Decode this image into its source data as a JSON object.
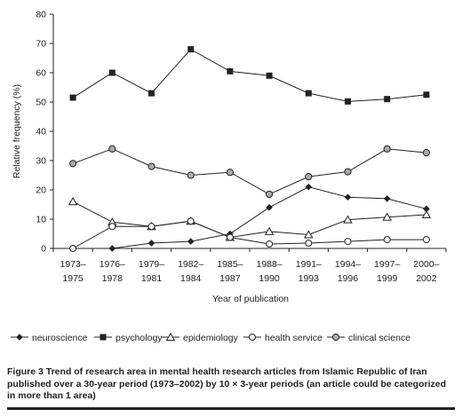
{
  "chart_data": {
    "type": "line",
    "ylabel": "Relative frequency (%)",
    "xlabel": "Year of publication",
    "ylim": [
      0,
      80
    ],
    "yticks": [
      "0",
      "10",
      "20",
      "30",
      "40",
      "50",
      "60",
      "70",
      "80"
    ],
    "categories": [
      [
        "1973–",
        "1975"
      ],
      [
        "1976–",
        "1978"
      ],
      [
        "1979–",
        "1981"
      ],
      [
        "1982–",
        "1984"
      ],
      [
        "1985–",
        "1987"
      ],
      [
        "1988–",
        "1990"
      ],
      [
        "1991–",
        "1993"
      ],
      [
        "1994–",
        "1996"
      ],
      [
        "1997–",
        "1999"
      ],
      [
        "2000–",
        "2002"
      ]
    ],
    "legend_position": "bottom",
    "grid": false,
    "series": [
      {
        "name": "neuroscience",
        "marker": "diamond",
        "values": [
          0,
          0,
          1.8,
          2.4,
          5,
          14,
          21,
          17.5,
          17,
          13.5
        ]
      },
      {
        "name": "psychology",
        "marker": "square",
        "values": [
          51.5,
          60,
          53,
          68,
          60.5,
          59,
          53,
          50.2,
          51,
          52.5
        ]
      },
      {
        "name": "epidemiology",
        "marker": "triangle-open",
        "values": [
          16,
          9,
          7.5,
          9.3,
          3.8,
          5.8,
          4.7,
          9.8,
          10.7,
          11.5
        ]
      },
      {
        "name": "health service",
        "marker": "circle-open",
        "values": [
          0,
          7.5,
          7.5,
          9.3,
          3.8,
          1.5,
          1.8,
          2.4,
          3,
          3
        ]
      },
      {
        "name": "clinical science",
        "marker": "circle-gray",
        "values": [
          29,
          34,
          28,
          25,
          26,
          18.5,
          24.5,
          26.2,
          34,
          32.7
        ]
      }
    ]
  },
  "caption": {
    "label": "Figure 3 ",
    "text": "Trend of research area in mental health research articles from Islamic Republic of Iran published over a 30-year period (1973–2002) by 10 × 3-year periods (an article could be categorized in more than 1 area)"
  }
}
